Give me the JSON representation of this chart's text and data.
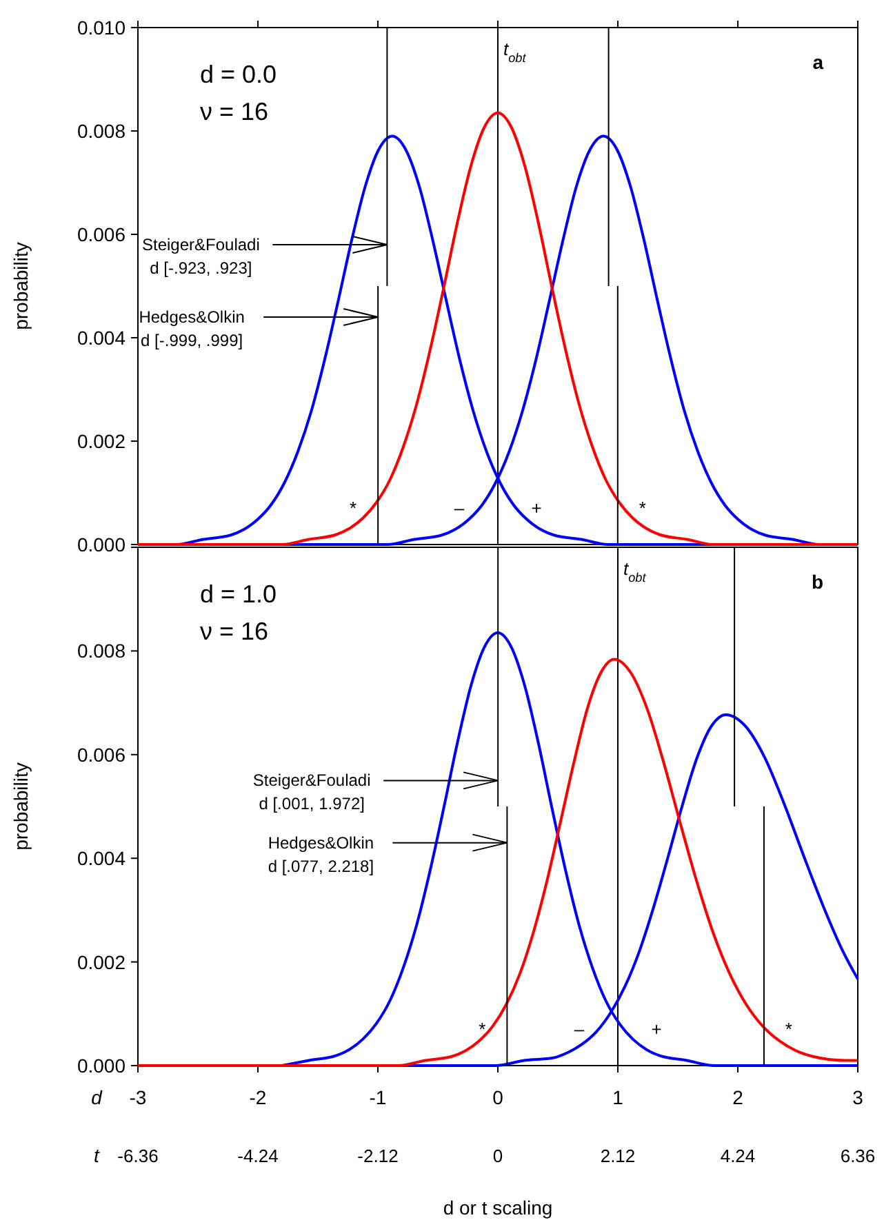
{
  "chart_data": [
    {
      "type": "line",
      "title": "a",
      "ylabel": "probability",
      "xlim": [
        -3,
        3
      ],
      "xticks": [
        -3,
        -2,
        -1,
        0,
        1,
        2,
        3
      ],
      "ylim": [
        0,
        0.01
      ],
      "yticks": [
        {
          "value": 0,
          "label": "0.000"
        },
        {
          "value": 0.002,
          "label": "0.002"
        },
        {
          "value": 0.004,
          "label": "0.004"
        },
        {
          "value": 0.006,
          "label": "0.006"
        },
        {
          "value": 0.008,
          "label": "0.008"
        },
        {
          "value": 0.01,
          "label": "0.010"
        }
      ],
      "tick_labels": "y",
      "series": [
        {
          "color": "#0000ff",
          "x": [
            -3,
            -2.68,
            -2.455,
            -2.23,
            -2.118,
            -2.005,
            -1.893,
            -1.78,
            -1.668,
            -1.555,
            -1.443,
            -1.33,
            -1.218,
            -1.105,
            -0.993,
            -0.88,
            -0.768,
            -0.655,
            -0.543,
            -0.43,
            -0.318,
            -0.205,
            -0.093,
            0.02,
            0.133,
            0.245,
            0.358,
            0.47,
            0.695,
            0.92,
            1.37,
            1.82,
            3
          ],
          "values": [
            0,
            0,
            0.0001,
            0.00018,
            0.00029,
            0.00048,
            0.00076,
            0.00119,
            0.00179,
            0.00258,
            0.00358,
            0.00472,
            0.00589,
            0.00693,
            0.00764,
            0.0079,
            0.00764,
            0.00693,
            0.00589,
            0.00472,
            0.00358,
            0.00258,
            0.00179,
            0.00119,
            0.00076,
            0.00048,
            0.00029,
            0.00018,
            0.0001,
            0,
            0,
            0,
            0
          ]
        },
        {
          "color": "#0000ff",
          "x": [
            -3,
            -1.82,
            -1.37,
            -0.92,
            -0.695,
            -0.47,
            -0.358,
            -0.245,
            -0.133,
            -0.02,
            0.093,
            0.205,
            0.318,
            0.43,
            0.543,
            0.655,
            0.768,
            0.88,
            0.993,
            1.105,
            1.218,
            1.33,
            1.443,
            1.555,
            1.668,
            1.78,
            1.893,
            2.005,
            2.118,
            2.23,
            2.455,
            2.68,
            3
          ],
          "values": [
            0,
            0,
            0,
            0,
            0.0001,
            0.00018,
            0.00029,
            0.00048,
            0.00076,
            0.00119,
            0.00179,
            0.00258,
            0.00358,
            0.00472,
            0.00589,
            0.00693,
            0.00764,
            0.0079,
            0.00764,
            0.00693,
            0.00589,
            0.00472,
            0.00358,
            0.00258,
            0.00179,
            0.00119,
            0.00076,
            0.00048,
            0.00029,
            0.00018,
            0.0001,
            0,
            0
          ]
        },
        {
          "color": "#ff0000",
          "x": [
            -3,
            -2.7,
            -2.25,
            -1.8,
            -1.575,
            -1.35,
            -1.238,
            -1.125,
            -1.013,
            -0.9,
            -0.788,
            -0.675,
            -0.563,
            -0.45,
            -0.338,
            -0.225,
            -0.113,
            0,
            0.113,
            0.225,
            0.338,
            0.45,
            0.563,
            0.675,
            0.788,
            0.9,
            1.013,
            1.125,
            1.238,
            1.35,
            1.575,
            1.8,
            2.25,
            2.7,
            3
          ],
          "values": [
            0,
            0,
            0,
            0,
            0.0001,
            0.00019,
            0.00031,
            0.00051,
            0.00081,
            0.00125,
            0.00189,
            0.00273,
            0.00378,
            0.00498,
            0.00622,
            0.00732,
            0.00807,
            0.00835,
            0.00807,
            0.00732,
            0.00622,
            0.00498,
            0.00378,
            0.00273,
            0.00189,
            0.00125,
            0.00081,
            0.00051,
            0.00031,
            0.00019,
            0.0001,
            0,
            0,
            0,
            0
          ]
        },
        {
          "color": "#000000",
          "x": [
            -0.923,
            -0.923
          ],
          "values": [
            0.005,
            0.01
          ]
        },
        {
          "color": "#000000",
          "x": [
            0.923,
            0.923
          ],
          "values": [
            0.005,
            0.01
          ]
        },
        {
          "color": "#000000",
          "x": [
            -0.999,
            -0.999
          ],
          "values": [
            0,
            0.005
          ]
        },
        {
          "color": "#000000",
          "x": [
            0.999,
            0.999
          ],
          "values": [
            0,
            0.005
          ]
        }
      ],
      "ref_lines": [
        {
          "axis": "x",
          "value": 0,
          "label": "t$_{obt}$",
          "color": "#000000"
        }
      ],
      "annotations": [
        "d = 0.0\nν = 16",
        "*",
        "–",
        "+",
        "*",
        {
          "text": "Steiger&Fouladi\nd [-.923, .923]",
          "x": -0.923,
          "y": 0.0058
        },
        {
          "text": "Hedges&Olkin\nd [-.999, .999]",
          "x": -0.999,
          "y": 0.0044
        }
      ]
    },
    {
      "type": "line",
      "title": "b",
      "ylabel": "probability",
      "xlabel": "d or t scaling",
      "xlim": [
        -3,
        3
      ],
      "xticks": [
        -3,
        -2,
        -1,
        0,
        1,
        2,
        3
      ],
      "ylim": [
        0,
        0.01
      ],
      "yticks": [
        {
          "value": 0,
          "label": "0.000"
        },
        {
          "value": 0.002,
          "label": "0.002"
        },
        {
          "value": 0.004,
          "label": "0.004"
        },
        {
          "value": 0.006,
          "label": "0.006"
        },
        {
          "value": 0.008,
          "label": "0.008"
        },
        {
          "value": 0.01,
          "label": null
        }
      ],
      "x2lim": [
        -6.36,
        6.36
      ],
      "x2ticks": [
        -6.36,
        -4.24,
        -2.12,
        0,
        2.12,
        4.24,
        6.36
      ],
      "x2label": "t",
      "series": [
        {
          "color": "#0000ff",
          "x": [
            -1.8,
            -1.575,
            -1.35,
            -1.238,
            -1.125,
            -1.013,
            -0.9,
            -0.788,
            -0.675,
            -0.563,
            -0.45,
            -0.338,
            -0.225,
            -0.113,
            0,
            0.113,
            0.225,
            0.338,
            0.45,
            0.563,
            0.675,
            0.788,
            0.9,
            1.013,
            1.125,
            1.238,
            1.35,
            1.575,
            1.8,
            2.25,
            2.7,
            3
          ],
          "values": [
            0,
            0.0001,
            0.00019,
            0.00031,
            0.00051,
            0.00081,
            0.00125,
            0.00189,
            0.00273,
            0.00378,
            0.00498,
            0.00622,
            0.00732,
            0.00807,
            0.00835,
            0.00807,
            0.00732,
            0.00622,
            0.00498,
            0.00378,
            0.00273,
            0.00189,
            0.00125,
            0.00081,
            0.00051,
            0.00031,
            0.00019,
            0.0001,
            0,
            0,
            0,
            0
          ]
        },
        {
          "color": "#0000ff",
          "x": [
            -3,
            -0.98,
            -0.5,
            -0.02,
            0.22,
            0.46,
            0.58,
            0.7,
            0.82,
            0.94,
            1.06,
            1.18,
            1.3,
            1.42,
            1.54,
            1.66,
            1.78,
            1.9,
            2.063,
            2.225,
            2.388,
            2.55,
            2.713,
            2.875,
            3
          ],
          "values": [
            0,
            0,
            0,
            0,
            0.0001,
            0.00015,
            0.00025,
            0.00041,
            0.00065,
            0.00102,
            0.00153,
            0.00221,
            0.00307,
            0.00404,
            0.00504,
            0.00594,
            0.00655,
            0.00677,
            0.00655,
            0.00594,
            0.00504,
            0.00404,
            0.00307,
            0.00221,
            0.00167
          ]
        },
        {
          "color": "#ff0000",
          "x": [
            -3,
            -1.73,
            -1.28,
            -0.83,
            -0.605,
            -0.38,
            -0.268,
            -0.155,
            -0.043,
            0.07,
            0.183,
            0.295,
            0.408,
            0.52,
            0.633,
            0.745,
            0.858,
            0.97,
            1.108,
            1.245,
            1.383,
            1.52,
            1.658,
            1.795,
            1.933,
            2.07,
            2.208,
            2.345,
            2.483,
            2.62,
            2.895,
            3
          ],
          "values": [
            0,
            0,
            0,
            0,
            0.0001,
            0.00018,
            0.00029,
            0.00048,
            0.00076,
            0.00118,
            0.00177,
            0.00256,
            0.00355,
            0.00468,
            0.00584,
            0.00688,
            0.00758,
            0.00784,
            0.00758,
            0.00688,
            0.00584,
            0.00468,
            0.00355,
            0.00256,
            0.00177,
            0.00118,
            0.00076,
            0.00048,
            0.00029,
            0.00018,
            0.0001,
            0.0001
          ]
        },
        {
          "color": "#000000",
          "x": [
            0.001,
            0.001
          ],
          "values": [
            0.005,
            0.01
          ]
        },
        {
          "color": "#000000",
          "x": [
            1.972,
            1.972
          ],
          "values": [
            0.005,
            0.01
          ]
        },
        {
          "color": "#000000",
          "x": [
            0.077,
            0.077
          ],
          "values": [
            0,
            0.005
          ]
        },
        {
          "color": "#000000",
          "x": [
            2.218,
            2.218
          ],
          "values": [
            0,
            0.005
          ]
        }
      ],
      "ref_lines": [
        {
          "axis": "x",
          "value": 1,
          "label": "t$_{obt}$",
          "color": "#000000"
        }
      ],
      "annotations": [
        "d = 1.0\nν = 16",
        "*",
        "–",
        "+",
        "*",
        "d",
        {
          "text": "Steiger&Fouladi\nd [.001, 1.972]",
          "x": 0.001,
          "y": 0.0055
        },
        {
          "text": "Hedges&Olkin\nd [.077, 2.218]",
          "x": 0.077,
          "y": 0.0043
        }
      ]
    }
  ]
}
